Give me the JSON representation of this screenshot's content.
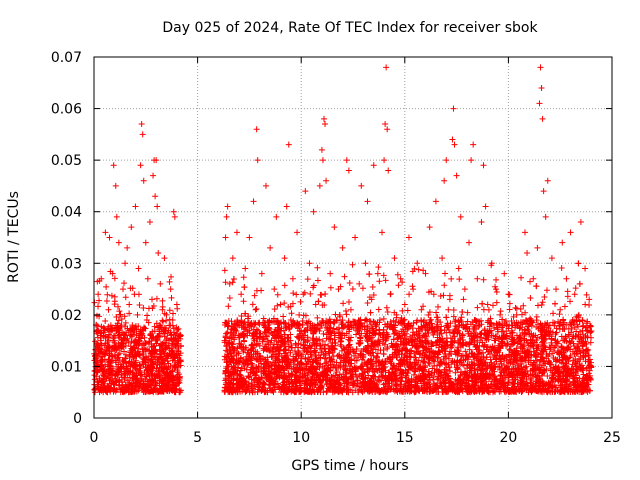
{
  "chart_data": {
    "type": "scatter",
    "title": "Day 025 of 2024, Rate Of TEC Index for receiver sbok",
    "xlabel": "GPS time / hours",
    "ylabel": "ROTI / TECUs",
    "xlim": [
      0,
      25
    ],
    "ylim": [
      0,
      0.07
    ],
    "x_ticks": [
      0,
      5,
      10,
      15,
      20,
      25
    ],
    "x_tick_labels": [
      "0",
      "5",
      "10",
      "15",
      "20",
      "25"
    ],
    "y_ticks": [
      0,
      0.01,
      0.02,
      0.03,
      0.04,
      0.05,
      0.06,
      0.07
    ],
    "y_tick_labels": [
      "0",
      "0.01",
      "0.02",
      "0.03",
      "0.04",
      "0.05",
      "0.06",
      "0.07"
    ],
    "grid": true,
    "marker": "+",
    "color": "#ff0000",
    "series": [
      {
        "points": [
          [
            0.05,
            0.012
          ],
          [
            0.1,
            0.018
          ],
          [
            0.15,
            0.009
          ],
          [
            0.2,
            0.024
          ],
          [
            0.25,
            0.014
          ],
          [
            0.3,
            0.006
          ],
          [
            0.35,
            0.027
          ],
          [
            0.4,
            0.011
          ],
          [
            0.45,
            0.016
          ],
          [
            0.5,
            0.008
          ],
          [
            0.55,
            0.036
          ],
          [
            0.6,
            0.013
          ],
          [
            0.65,
            0.005
          ],
          [
            0.7,
            0.021
          ],
          [
            0.75,
            0.035
          ],
          [
            0.8,
            0.01
          ],
          [
            0.85,
            0.017
          ],
          [
            0.9,
            0.028
          ],
          [
            0.95,
            0.049
          ],
          [
            1.0,
            0.012
          ],
          [
            1.05,
            0.045
          ],
          [
            1.1,
            0.039
          ],
          [
            1.15,
            0.009
          ],
          [
            1.2,
            0.034
          ],
          [
            1.25,
            0.02
          ],
          [
            1.3,
            0.014
          ],
          [
            1.35,
            0.007
          ],
          [
            1.4,
            0.025
          ],
          [
            1.45,
            0.011
          ],
          [
            1.5,
            0.03
          ],
          [
            1.55,
            0.016
          ],
          [
            1.6,
            0.033
          ],
          [
            1.65,
            0.009
          ],
          [
            1.7,
            0.022
          ],
          [
            1.75,
            0.013
          ],
          [
            1.8,
            0.037
          ],
          [
            1.85,
            0.018
          ],
          [
            1.9,
            0.01
          ],
          [
            1.95,
            0.024
          ],
          [
            2.0,
            0.041
          ],
          [
            2.05,
            0.012
          ],
          [
            2.1,
            0.02
          ],
          [
            2.15,
            0.029
          ],
          [
            2.2,
            0.015
          ],
          [
            2.25,
            0.049
          ],
          [
            2.3,
            0.057
          ],
          [
            2.35,
            0.055
          ],
          [
            2.4,
            0.046
          ],
          [
            2.45,
            0.011
          ],
          [
            2.5,
            0.034
          ],
          [
            2.55,
            0.019
          ],
          [
            2.6,
            0.027
          ],
          [
            2.65,
            0.013
          ],
          [
            2.7,
            0.038
          ],
          [
            2.75,
            0.016
          ],
          [
            2.8,
            0.023
          ],
          [
            2.85,
            0.047
          ],
          [
            2.9,
            0.05
          ],
          [
            2.95,
            0.043
          ],
          [
            3.0,
            0.05
          ],
          [
            3.05,
            0.041
          ],
          [
            3.1,
            0.032
          ],
          [
            3.15,
            0.018
          ],
          [
            3.2,
            0.026
          ],
          [
            3.25,
            0.012
          ],
          [
            3.3,
            0.021
          ],
          [
            3.35,
            0.009
          ],
          [
            3.4,
            0.031
          ],
          [
            3.45,
            0.014
          ],
          [
            3.5,
            0.02
          ],
          [
            3.55,
            0.011
          ],
          [
            3.6,
            0.017
          ],
          [
            3.65,
            0.008
          ],
          [
            3.7,
            0.025
          ],
          [
            3.75,
            0.013
          ],
          [
            3.8,
            0.019
          ],
          [
            3.85,
            0.04
          ],
          [
            3.9,
            0.039
          ],
          [
            3.95,
            0.012
          ],
          [
            4.0,
            0.022
          ],
          [
            4.05,
            0.01
          ],
          [
            4.1,
            0.016
          ],
          [
            4.15,
            0.008
          ],
          [
            4.2,
            0.014
          ],
          [
            6.3,
            0.015
          ],
          [
            6.35,
            0.035
          ],
          [
            6.4,
            0.039
          ],
          [
            6.45,
            0.041
          ],
          [
            6.5,
            0.012
          ],
          [
            6.55,
            0.026
          ],
          [
            6.6,
            0.009
          ],
          [
            6.7,
            0.031
          ],
          [
            6.8,
            0.018
          ],
          [
            6.9,
            0.036
          ],
          [
            7.0,
            0.011
          ],
          [
            7.1,
            0.024
          ],
          [
            7.2,
            0.007
          ],
          [
            7.3,
            0.029
          ],
          [
            7.4,
            0.016
          ],
          [
            7.5,
            0.035
          ],
          [
            7.6,
            0.013
          ],
          [
            7.7,
            0.042
          ],
          [
            7.8,
            0.021
          ],
          [
            7.85,
            0.056
          ],
          [
            7.9,
            0.05
          ],
          [
            8.0,
            0.014
          ],
          [
            8.1,
            0.028
          ],
          [
            8.2,
            0.009
          ],
          [
            8.3,
            0.045
          ],
          [
            8.4,
            0.018
          ],
          [
            8.5,
            0.033
          ],
          [
            8.6,
            0.012
          ],
          [
            8.7,
            0.025
          ],
          [
            8.8,
            0.039
          ],
          [
            8.9,
            0.016
          ],
          [
            9.0,
            0.022
          ],
          [
            9.1,
            0.011
          ],
          [
            9.2,
            0.031
          ],
          [
            9.3,
            0.041
          ],
          [
            9.4,
            0.053
          ],
          [
            9.5,
            0.019
          ],
          [
            9.6,
            0.027
          ],
          [
            9.7,
            0.013
          ],
          [
            9.8,
            0.036
          ],
          [
            9.9,
            0.02
          ],
          [
            10.0,
            0.012
          ],
          [
            10.1,
            0.024
          ],
          [
            10.2,
            0.044
          ],
          [
            10.3,
            0.017
          ],
          [
            10.4,
            0.03
          ],
          [
            10.5,
            0.009
          ],
          [
            10.6,
            0.04
          ],
          [
            10.7,
            0.022
          ],
          [
            10.8,
            0.015
          ],
          [
            10.9,
            0.045
          ],
          [
            11.0,
            0.052
          ],
          [
            11.05,
            0.05
          ],
          [
            11.1,
            0.058
          ],
          [
            11.15,
            0.057
          ],
          [
            11.2,
            0.046
          ],
          [
            11.3,
            0.014
          ],
          [
            11.4,
            0.028
          ],
          [
            11.5,
            0.011
          ],
          [
            11.6,
            0.037
          ],
          [
            11.7,
            0.019
          ],
          [
            11.8,
            0.025
          ],
          [
            11.9,
            0.01
          ],
          [
            12.0,
            0.033
          ],
          [
            12.1,
            0.016
          ],
          [
            12.2,
            0.05
          ],
          [
            12.3,
            0.048
          ],
          [
            12.4,
            0.021
          ],
          [
            12.5,
            0.013
          ],
          [
            12.6,
            0.035
          ],
          [
            12.7,
            0.018
          ],
          [
            12.8,
            0.026
          ],
          [
            12.9,
            0.045
          ],
          [
            13.0,
            0.012
          ],
          [
            13.1,
            0.03
          ],
          [
            13.2,
            0.042
          ],
          [
            13.3,
            0.016
          ],
          [
            13.4,
            0.023
          ],
          [
            13.5,
            0.049
          ],
          [
            13.6,
            0.011
          ],
          [
            13.7,
            0.028
          ],
          [
            13.8,
            0.019
          ],
          [
            13.9,
            0.036
          ],
          [
            14.0,
            0.05
          ],
          [
            14.05,
            0.057
          ],
          [
            14.1,
            0.068
          ],
          [
            14.15,
            0.056
          ],
          [
            14.2,
            0.048
          ],
          [
            14.3,
            0.024
          ],
          [
            14.4,
            0.014
          ],
          [
            14.5,
            0.031
          ],
          [
            14.6,
            0.02
          ],
          [
            14.7,
            0.01
          ],
          [
            14.8,
            0.027
          ],
          [
            14.9,
            0.016
          ],
          [
            15.0,
            0.022
          ],
          [
            15.1,
            0.012
          ],
          [
            15.2,
            0.035
          ],
          [
            15.3,
            0.018
          ],
          [
            15.4,
            0.025
          ],
          [
            15.5,
            0.009
          ],
          [
            15.6,
            0.03
          ],
          [
            15.7,
            0.015
          ],
          [
            15.8,
            0.021
          ],
          [
            15.9,
            0.011
          ],
          [
            16.0,
            0.028
          ],
          [
            16.1,
            0.017
          ],
          [
            16.2,
            0.037
          ],
          [
            16.3,
            0.013
          ],
          [
            16.4,
            0.024
          ],
          [
            16.5,
            0.042
          ],
          [
            16.6,
            0.019
          ],
          [
            16.7,
            0.011
          ],
          [
            16.8,
            0.031
          ],
          [
            16.9,
            0.046
          ],
          [
            17.0,
            0.05
          ],
          [
            17.1,
            0.021
          ],
          [
            17.2,
            0.014
          ],
          [
            17.3,
            0.054
          ],
          [
            17.35,
            0.06
          ],
          [
            17.4,
            0.053
          ],
          [
            17.5,
            0.047
          ],
          [
            17.6,
            0.029
          ],
          [
            17.7,
            0.039
          ],
          [
            17.8,
            0.016
          ],
          [
            17.9,
            0.025
          ],
          [
            18.0,
            0.012
          ],
          [
            18.1,
            0.034
          ],
          [
            18.2,
            0.05
          ],
          [
            18.3,
            0.053
          ],
          [
            18.4,
            0.019
          ],
          [
            18.5,
            0.027
          ],
          [
            18.6,
            0.014
          ],
          [
            18.7,
            0.038
          ],
          [
            18.8,
            0.049
          ],
          [
            18.9,
            0.041
          ],
          [
            19.0,
            0.022
          ],
          [
            19.1,
            0.013
          ],
          [
            19.2,
            0.03
          ],
          [
            19.3,
            0.018
          ],
          [
            19.4,
            0.025
          ],
          [
            19.5,
            0.01
          ],
          [
            19.6,
            0.02
          ],
          [
            19.7,
            0.014
          ],
          [
            19.8,
            0.028
          ],
          [
            19.9,
            0.016
          ],
          [
            20.0,
            0.024
          ],
          [
            20.1,
            0.011
          ],
          [
            20.2,
            0.018
          ],
          [
            20.3,
            0.012
          ],
          [
            20.4,
            0.02
          ],
          [
            20.5,
            0.009
          ],
          [
            20.6,
            0.015
          ],
          [
            20.7,
            0.011
          ],
          [
            20.8,
            0.036
          ],
          [
            20.9,
            0.032
          ],
          [
            21.0,
            0.013
          ],
          [
            21.1,
            0.019
          ],
          [
            21.2,
            0.027
          ],
          [
            21.3,
            0.016
          ],
          [
            21.4,
            0.033
          ],
          [
            21.5,
            0.061
          ],
          [
            21.55,
            0.068
          ],
          [
            21.6,
            0.064
          ],
          [
            21.65,
            0.058
          ],
          [
            21.7,
            0.044
          ],
          [
            21.8,
            0.039
          ],
          [
            21.9,
            0.046
          ],
          [
            22.0,
            0.018
          ],
          [
            22.1,
            0.031
          ],
          [
            22.2,
            0.013
          ],
          [
            22.3,
            0.025
          ],
          [
            22.4,
            0.009
          ],
          [
            22.5,
            0.021
          ],
          [
            22.6,
            0.034
          ],
          [
            22.7,
            0.015
          ],
          [
            22.8,
            0.027
          ],
          [
            22.9,
            0.011
          ],
          [
            23.0,
            0.036
          ],
          [
            23.1,
            0.019
          ],
          [
            23.2,
            0.024
          ],
          [
            23.3,
            0.013
          ],
          [
            23.4,
            0.02
          ],
          [
            23.5,
            0.038
          ],
          [
            23.6,
            0.012
          ],
          [
            23.7,
            0.029
          ],
          [
            23.8,
            0.017
          ],
          [
            23.9,
            0.023
          ],
          [
            24.0,
            0.01
          ]
        ]
      }
    ],
    "scatter_band": {
      "note": "",
      "segments": [
        {
          "x": [
            0.0,
            4.2
          ],
          "y_low": 0.005,
          "y_high": 0.018
        },
        {
          "x": [
            6.3,
            24.0
          ],
          "y_low": 0.005,
          "y_high": 0.019
        }
      ]
    }
  }
}
